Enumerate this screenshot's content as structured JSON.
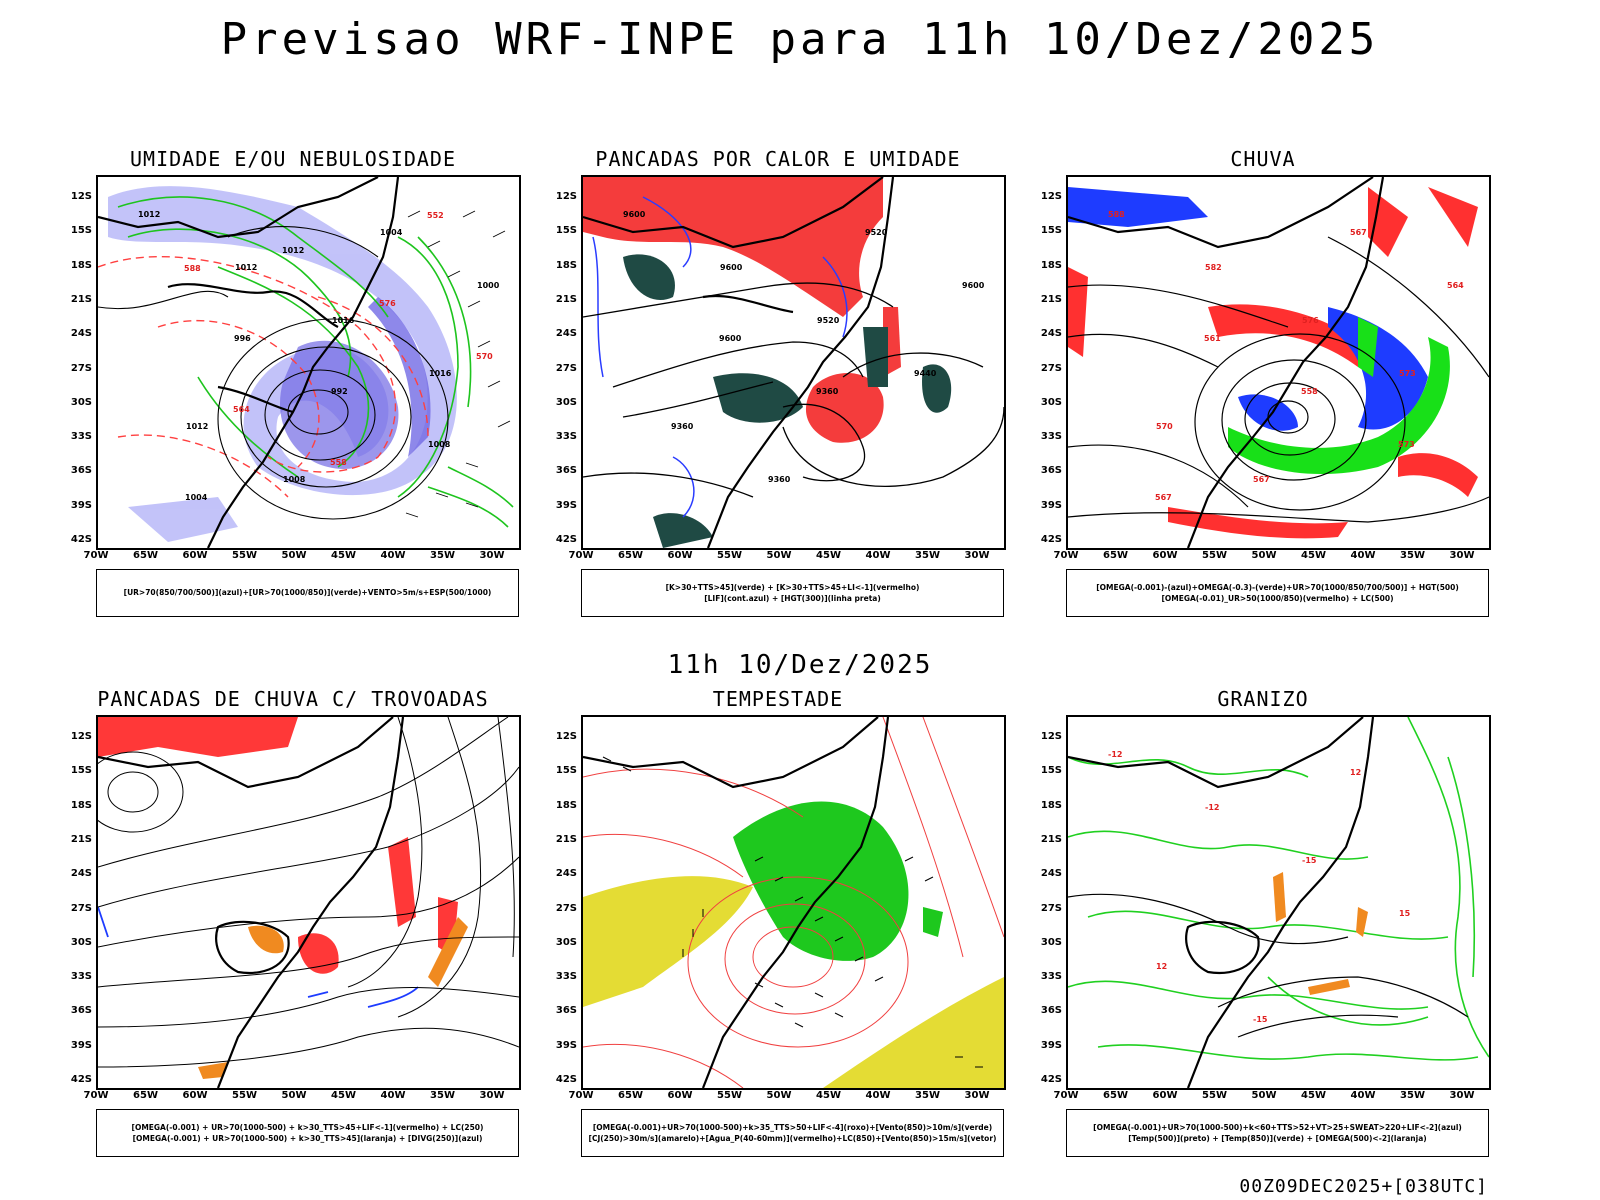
{
  "title": "Previsao WRF-INPE  para 11h 10/Dez/2025",
  "mid_label": "11h 10/Dez/2025",
  "footer": "00Z09DEC2025+[038UTC]",
  "lat_labels": [
    "12S",
    "15S",
    "18S",
    "21S",
    "24S",
    "27S",
    "30S",
    "33S",
    "36S",
    "39S",
    "42S"
  ],
  "lon_labels": [
    "70W",
    "65W",
    "60W",
    "55W",
    "50W",
    "45W",
    "40W",
    "35W",
    "30W"
  ],
  "panels": [
    {
      "id": "umidade",
      "title": "UMIDADE E/OU NEBULOSIDADE",
      "legend": [
        "[UR>70(850/700/500)](azul)+[UR>70(1000/850)](verde)+VENTO>5m/s+ESP(500/1000)"
      ],
      "contour_labels": [
        "1012",
        "1012",
        "1016",
        "1016",
        "1012",
        "1008",
        "1004",
        "1000",
        "996",
        "992",
        "1008",
        "1004",
        "1012",
        "576",
        "570",
        "564",
        "558",
        "552",
        "588"
      ],
      "colors": {
        "blue": "#5a50e0",
        "light_blue": "#b8b8f8",
        "green": "#1ec41e",
        "red": "#ff4040"
      }
    },
    {
      "id": "pancadas-calor",
      "title": "PANCADAS POR CALOR E UMIDADE",
      "legend": [
        "[K>30+TTS>45](verde) + [K>30+TTS>45+LI<-1](vermelho)",
        "[LIF](cont.azul) + [HGT(300)](linha preta)"
      ],
      "contour_labels": [
        "9600",
        "9600",
        "9520",
        "9440",
        "9360",
        "9360",
        "9520",
        "9600",
        "9600",
        "9360"
      ],
      "colors": {
        "red": "#f43c3c",
        "dark_green": "#1f4a44",
        "blue": "#2a3cff"
      }
    },
    {
      "id": "chuva",
      "title": "CHUVA",
      "legend": [
        "[OMEGA(-0.001)-(azul)+OMEGA(-0.3)-(verde)+UR>70(1000/850/700/500)] + HGT(500)",
        "[OMEGA(-0.01)_UR>50(1000/850)(vermelho) + LC(500)"
      ],
      "contour_labels": [
        "588",
        "582",
        "576",
        "573",
        "570",
        "567",
        "567",
        "564",
        "561",
        "558",
        "573",
        "567"
      ],
      "colors": {
        "red": "#ff3030",
        "blue": "#1e3cff",
        "green": "#18e018"
      }
    },
    {
      "id": "trovoadas",
      "title": "PANCADAS DE CHUVA C/ TROVOADAS",
      "legend": [
        "[OMEGA(-0.001) + UR>70(1000-500) + k>30_TTS>45+LIF<-1](vermelho) + LC(250)",
        "[OMEGA(-0.001) + UR>70(1000-500) + k>30_TTS>45](laranja) + [DIVG(250)](azul)"
      ],
      "contour_labels": [],
      "colors": {
        "red": "#ff3838",
        "orange": "#f08a20",
        "blue": "#1e3cff"
      }
    },
    {
      "id": "tempestade",
      "title": "TEMPESTADE",
      "legend": [
        "[OMEGA(-0.001)+UR>70(1000-500)+k>35_TTS>50+LIF<-4](roxo)+[Vento(850)>10m/s](verde)",
        "[CJ(250)>30m/s](amarelo)+[Agua_P(40-60mm)](vermelho)+LC(850)+[Vento(850)>15m/s](vetor)"
      ],
      "contour_labels": [],
      "colors": {
        "green": "#1ec81e",
        "yellow": "#e4dc34",
        "red": "#f04040"
      }
    },
    {
      "id": "granizo",
      "title": "GRANIZO",
      "legend": [
        "[OMEGA(-0.001)+UR>70(1000-500)+k<60+TTS>52+VT>25+SWEAT>220+LIF<-2](azul)",
        "[Temp(500)](preto) + [Temp(850)](verde) + [OMEGA(500)<-2](laranja)"
      ],
      "contour_labels": [
        "-12",
        "-12",
        "-15",
        "15",
        "12",
        "-15",
        "12"
      ],
      "colors": {
        "green": "#20d020",
        "orange": "#f08a20"
      }
    }
  ]
}
